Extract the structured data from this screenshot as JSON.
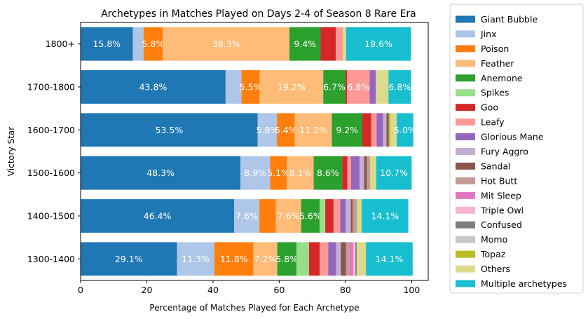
{
  "chart_data": {
    "type": "bar",
    "orientation": "horizontal",
    "stacked": true,
    "title": "Archetypes in Matches Played on Days 2-4 of Season 8 Rare Era",
    "xlabel": "Percentage of Matches Played for Each Archetype",
    "ylabel": "Victory Star",
    "xlim": [
      0,
      105
    ],
    "xticks": [
      "0",
      "20",
      "40",
      "60",
      "80",
      "100"
    ],
    "grid": false,
    "legend_position": "outside-right",
    "categories": [
      "1800+",
      "1700-1800",
      "1600-1700",
      "1500-1600",
      "1400-1500",
      "1300-1400"
    ],
    "series": [
      {
        "name": "Giant Bubble",
        "color": "#1f77b4",
        "values": [
          15.8,
          43.8,
          53.5,
          48.3,
          46.4,
          29.1
        ],
        "labels": [
          "15.8%",
          "43.8%",
          "53.5%",
          "48.3%",
          "46.4%",
          "29.1%"
        ]
      },
      {
        "name": "Jinx",
        "color": "#aec7e8",
        "values": [
          3.2,
          4.8,
          5.8,
          8.9,
          7.6,
          11.3
        ],
        "labels": [
          "",
          "",
          "5.8%",
          "8.9%",
          "7.6%",
          "11.3%"
        ]
      },
      {
        "name": "Poison",
        "color": "#ff7f0e",
        "values": [
          5.8,
          5.5,
          5.4,
          5.1,
          5.0,
          11.8
        ],
        "labels": [
          "5.8%",
          "5.5%",
          "5.4%",
          "5.1%",
          "",
          "11.8%"
        ]
      },
      {
        "name": "Feather",
        "color": "#ffbb78",
        "values": [
          38.3,
          19.2,
          11.2,
          8.1,
          7.6,
          7.2
        ],
        "labels": [
          "38.3%",
          "19.2%",
          "11.2%",
          "8.1%",
          "7.6%",
          "7.2%"
        ]
      },
      {
        "name": "Anemone",
        "color": "#2ca02c",
        "values": [
          9.4,
          6.7,
          9.2,
          8.6,
          5.6,
          5.8
        ],
        "labels": [
          "9.4%",
          "6.7%",
          "9.2%",
          "8.6%",
          "5.6%",
          "5.8%"
        ]
      },
      {
        "name": "Spikes",
        "color": "#98df8a",
        "values": [
          0.0,
          0.0,
          0.0,
          0.0,
          1.7,
          3.8
        ],
        "labels": [
          "",
          "",
          "",
          "",
          "",
          ""
        ]
      },
      {
        "name": "Goo",
        "color": "#d62728",
        "values": [
          4.6,
          0.5,
          2.7,
          1.6,
          2.5,
          3.2
        ],
        "labels": [
          "",
          "",
          "",
          "",
          "",
          ""
        ]
      },
      {
        "name": "Leafy",
        "color": "#ff9896",
        "values": [
          2.1,
          6.8,
          1.6,
          1.1,
          2.0,
          2.6
        ],
        "labels": [
          "",
          "6.8%",
          "",
          "",
          "",
          ""
        ]
      },
      {
        "name": "Glorious Mane",
        "color": "#9467bd",
        "values": [
          0.0,
          1.9,
          2.0,
          2.6,
          1.7,
          2.4
        ],
        "labels": [
          "",
          "",
          "",
          "",
          "",
          ""
        ]
      },
      {
        "name": "Fury Aggro",
        "color": "#c5b0d5",
        "values": [
          0.0,
          0.0,
          1.0,
          1.3,
          1.5,
          1.4
        ],
        "labels": [
          "",
          "",
          "",
          "",
          "",
          ""
        ]
      },
      {
        "name": "Sandal",
        "color": "#8c564b",
        "values": [
          0.0,
          0.0,
          0.7,
          0.9,
          0.6,
          1.6
        ],
        "labels": [
          "",
          "",
          "",
          "",
          "",
          ""
        ]
      },
      {
        "name": "Hot Butt",
        "color": "#c49c94",
        "values": [
          0.0,
          0.0,
          0.0,
          1.0,
          1.3,
          1.0
        ],
        "labels": [
          "",
          "",
          "",
          "",
          "",
          ""
        ]
      },
      {
        "name": "Mit Sleep",
        "color": "#e377c2",
        "values": [
          0.0,
          0.0,
          0.0,
          0.0,
          0.0,
          1.2
        ],
        "labels": [
          "",
          "",
          "",
          "",
          "",
          ""
        ]
      },
      {
        "name": "Triple Owl",
        "color": "#f7b6d2",
        "values": [
          0.0,
          0.0,
          0.0,
          0.0,
          0.0,
          0.6
        ],
        "labels": [
          "",
          "",
          "",
          "",
          "",
          ""
        ]
      },
      {
        "name": "Confused",
        "color": "#7f7f7f",
        "values": [
          0.0,
          0.0,
          0.0,
          0.0,
          0.0,
          0.4
        ],
        "labels": [
          "",
          "",
          "",
          "",
          "",
          ""
        ]
      },
      {
        "name": "Momo",
        "color": "#c7c7c7",
        "values": [
          0.0,
          0.0,
          0.0,
          0.0,
          0.0,
          0.0
        ],
        "labels": [
          "",
          "",
          "",
          "",
          "",
          ""
        ]
      },
      {
        "name": "Topaz",
        "color": "#bcbd22",
        "values": [
          0.0,
          0.0,
          0.5,
          0.0,
          0.0,
          0.0
        ],
        "labels": [
          "",
          "",
          "",
          "",
          "",
          ""
        ]
      },
      {
        "name": "Others",
        "color": "#dbdb8d",
        "values": [
          1.0,
          3.8,
          1.9,
          1.8,
          1.4,
          2.8
        ],
        "labels": [
          "",
          "",
          "",
          "",
          "",
          ""
        ]
      },
      {
        "name": "Multiple archetypes",
        "color": "#17becf",
        "values": [
          19.6,
          6.8,
          5.0,
          10.7,
          14.1,
          14.1
        ],
        "labels": [
          "19.6%",
          "6.8%",
          "5.0%",
          "10.7%",
          "14.1%",
          "14.1%"
        ]
      }
    ]
  }
}
